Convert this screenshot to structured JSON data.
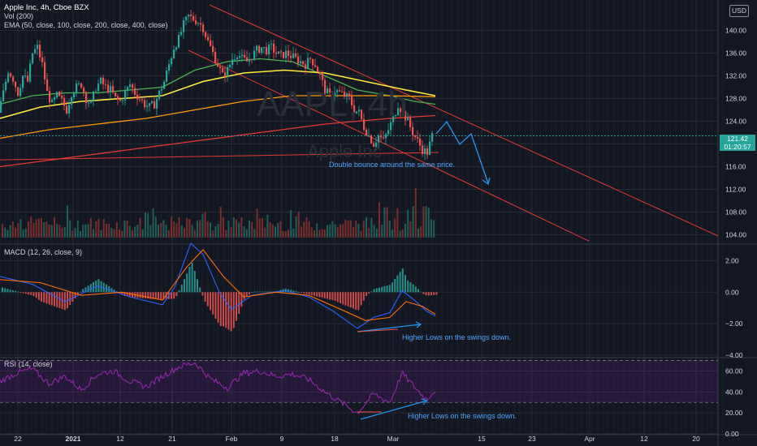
{
  "header": {
    "symbol_title": "Apple Inc, 4h, Cboe BZX",
    "vol_indicator": "Vol (200)",
    "ema_indicator": "EMA (50, close, 100, close, 200, close, 400, close)",
    "currency_button": "USD",
    "watermark_ticker": "AAPL, 4h",
    "watermark_name": "Apple Inc"
  },
  "price_tag": {
    "price": "121.42",
    "countdown": "01:20:57"
  },
  "macd_panel": {
    "title": "MACD (12, 26, close, 9)"
  },
  "rsi_panel": {
    "title": "RSI (14, close)"
  },
  "annotations": {
    "price_note": "Double bounce around the same price.",
    "macd_note": "Higher Lows on the swings down.",
    "rsi_note": "Higher Lows on the swings down."
  },
  "colors": {
    "background": "#131722",
    "up": "#26a69a",
    "down": "#ef5350",
    "ema50": "#4caf50",
    "ema100": "#ffeb3b",
    "ema200": "#ff9800",
    "ema400": "#e53935",
    "macd": "#2962ff",
    "signal": "#ff6d00",
    "rsi": "#9c27b0",
    "annotation": "#2196f3",
    "channel": "#e53935"
  },
  "chart_data": [
    {
      "type": "candlestick",
      "title": "Apple Inc, 4h, Cboe BZX",
      "y_ticks": [
        104,
        108,
        112,
        116,
        120,
        124,
        128,
        132,
        136,
        140
      ],
      "x_tick_labels": [
        "22",
        "2021",
        "12",
        "21",
        "Feb",
        "9",
        "18",
        "Mar",
        "15",
        "23",
        "Apr",
        "12",
        "20"
      ],
      "ylim": [
        102.5,
        144.5
      ],
      "last_price": 121.42,
      "close_path": [
        [
          0,
          125.5
        ],
        [
          6,
          129
        ],
        [
          12,
          133
        ],
        [
          18,
          131.5
        ],
        [
          24,
          129
        ],
        [
          30,
          132
        ],
        [
          36,
          131
        ],
        [
          42,
          136
        ],
        [
          48,
          137
        ],
        [
          54,
          134
        ],
        [
          60,
          129
        ],
        [
          66,
          127
        ],
        [
          72,
          128.5
        ],
        [
          78,
          127.5
        ],
        [
          84,
          126
        ],
        [
          90,
          129
        ],
        [
          96,
          130
        ],
        [
          102,
          130.5
        ],
        [
          108,
          128
        ],
        [
          114,
          127
        ],
        [
          120,
          130
        ],
        [
          126,
          131
        ],
        [
          132,
          130
        ],
        [
          138,
          129.5
        ],
        [
          144,
          128
        ],
        [
          150,
          127.5
        ],
        [
          156,
          129
        ],
        [
          162,
          130.5
        ],
        [
          168,
          129
        ],
        [
          174,
          128
        ],
        [
          180,
          127
        ],
        [
          186,
          126.5
        ],
        [
          192,
          127
        ],
        [
          198,
          129
        ],
        [
          204,
          131
        ],
        [
          210,
          134
        ],
        [
          216,
          137
        ],
        [
          222,
          138.5
        ],
        [
          228,
          141
        ],
        [
          234,
          142.5
        ],
        [
          240,
          142
        ],
        [
          246,
          141.5
        ],
        [
          252,
          140.5
        ],
        [
          258,
          138
        ],
        [
          264,
          136
        ],
        [
          270,
          134
        ],
        [
          276,
          132
        ],
        [
          282,
          133
        ],
        [
          288,
          135
        ],
        [
          294,
          136
        ],
        [
          300,
          135
        ],
        [
          306,
          134.5
        ],
        [
          312,
          135.5
        ],
        [
          318,
          136.5
        ],
        [
          324,
          137
        ],
        [
          330,
          136.5
        ],
        [
          336,
          137
        ],
        [
          342,
          136
        ],
        [
          348,
          135.5
        ],
        [
          354,
          136
        ],
        [
          360,
          135.5
        ],
        [
          366,
          135
        ],
        [
          372,
          134.5
        ],
        [
          378,
          134
        ],
        [
          384,
          135
        ],
        [
          390,
          134
        ],
        [
          396,
          132
        ],
        [
          402,
          129.5
        ],
        [
          408,
          128.5
        ],
        [
          414,
          129.5
        ],
        [
          420,
          129
        ],
        [
          426,
          128.5
        ],
        [
          432,
          128
        ],
        [
          438,
          126
        ],
        [
          444,
          125.5
        ],
        [
          450,
          123
        ],
        [
          456,
          121.5
        ],
        [
          462,
          120
        ],
        [
          468,
          121.5
        ],
        [
          474,
          120.5
        ],
        [
          480,
          122.5
        ],
        [
          486,
          124.5
        ],
        [
          492,
          127
        ],
        [
          498,
          125.5
        ],
        [
          504,
          124
        ],
        [
          510,
          122
        ],
        [
          516,
          120.5
        ],
        [
          522,
          119
        ],
        [
          528,
          118.5
        ],
        [
          534,
          121.42
        ]
      ],
      "ema_series": [
        {
          "name": "EMA 50",
          "points": [
            [
              0,
              127
            ],
            [
              40,
              128.5
            ],
            [
              80,
              129
            ],
            [
              120,
              129
            ],
            [
              160,
              129.5
            ],
            [
              200,
              130
            ],
            [
              240,
              133
            ],
            [
              280,
              134.5
            ],
            [
              320,
              135
            ],
            [
              360,
              134.5
            ],
            [
              400,
              132
            ],
            [
              440,
              129.5
            ],
            [
              480,
              128.5
            ],
            [
              510,
              127.5
            ],
            [
              536,
              127
            ]
          ]
        },
        {
          "name": "EMA 100",
          "points": [
            [
              0,
              124.5
            ],
            [
              50,
              126.5
            ],
            [
              100,
              127.5
            ],
            [
              150,
              128
            ],
            [
              200,
              128.5
            ],
            [
              250,
              131
            ],
            [
              300,
              132.5
            ],
            [
              350,
              133
            ],
            [
              400,
              132.5
            ],
            [
              450,
              131
            ],
            [
              500,
              129.5
            ],
            [
              536,
              128.5
            ]
          ]
        },
        {
          "name": "EMA 200",
          "points": [
            [
              0,
              121
            ],
            [
              60,
              122.5
            ],
            [
              120,
              123.5
            ],
            [
              180,
              124.5
            ],
            [
              240,
              126
            ],
            [
              300,
              127.5
            ],
            [
              360,
              128.5
            ],
            [
              420,
              128.5
            ],
            [
              480,
              128.5
            ],
            [
              536,
              128.3
            ]
          ]
        },
        {
          "name": "EMA 400",
          "points": [
            [
              0,
              116
            ],
            [
              80,
              117.5
            ],
            [
              160,
              119
            ],
            [
              240,
              120.5
            ],
            [
              320,
              122
            ],
            [
              400,
              123.5
            ],
            [
              480,
              124.5
            ],
            [
              536,
              125
            ]
          ]
        }
      ],
      "volume": {
        "max_bar_fraction": 1.0,
        "pattern": "spiky, larger spikes near late Jan and early Mar"
      }
    },
    {
      "type": "line",
      "title": "MACD (12, 26, close, 9)",
      "y_ticks": [
        -4.0,
        -2.0,
        0.0,
        2.0
      ],
      "ylim": [
        -4.1,
        3.0
      ],
      "series": [
        {
          "name": "MACD",
          "points": [
            [
              0,
              1.0
            ],
            [
              40,
              0.5
            ],
            [
              80,
              -0.6
            ],
            [
              120,
              0.4
            ],
            [
              160,
              -0.3
            ],
            [
              200,
              -0.8
            ],
            [
              215,
              0.3
            ],
            [
              235,
              3.1
            ],
            [
              250,
              2.4
            ],
            [
              270,
              0.0
            ],
            [
              285,
              -1.1
            ],
            [
              310,
              -0.2
            ],
            [
              350,
              0.1
            ],
            [
              380,
              -0.3
            ],
            [
              410,
              -1.2
            ],
            [
              440,
              -2.3
            ],
            [
              460,
              -1.6
            ],
            [
              480,
              -1.3
            ],
            [
              495,
              0.1
            ],
            [
              510,
              -0.5
            ],
            [
              525,
              -1.2
            ],
            [
              536,
              -1.5
            ]
          ]
        },
        {
          "name": "Signal",
          "points": [
            [
              0,
              0.8
            ],
            [
              50,
              0.6
            ],
            [
              100,
              -0.2
            ],
            [
              150,
              0.0
            ],
            [
              200,
              -0.5
            ],
            [
              230,
              1.6
            ],
            [
              250,
              2.7
            ],
            [
              275,
              1.0
            ],
            [
              300,
              -0.3
            ],
            [
              340,
              0.0
            ],
            [
              380,
              -0.2
            ],
            [
              420,
              -1.1
            ],
            [
              450,
              -1.8
            ],
            [
              480,
              -1.6
            ],
            [
              500,
              -0.6
            ],
            [
              520,
              -0.9
            ],
            [
              536,
              -1.4
            ]
          ]
        }
      ]
    },
    {
      "type": "line",
      "title": "RSI (14, close)",
      "y_ticks": [
        0,
        20,
        40,
        60
      ],
      "ylim": [
        0,
        72
      ],
      "bands": [
        70,
        30
      ],
      "series": [
        {
          "name": "RSI",
          "points": [
            [
              0,
              50
            ],
            [
              20,
              58
            ],
            [
              40,
              62
            ],
            [
              60,
              48
            ],
            [
              80,
              55
            ],
            [
              100,
              42
            ],
            [
              120,
              57
            ],
            [
              140,
              60
            ],
            [
              160,
              50
            ],
            [
              180,
              45
            ],
            [
              200,
              55
            ],
            [
              220,
              64
            ],
            [
              240,
              68
            ],
            [
              260,
              52
            ],
            [
              280,
              44
            ],
            [
              300,
              58
            ],
            [
              320,
              60
            ],
            [
              340,
              55
            ],
            [
              360,
              57
            ],
            [
              380,
              52
            ],
            [
              400,
              40
            ],
            [
              420,
              30
            ],
            [
              440,
              20
            ],
            [
              460,
              38
            ],
            [
              480,
              30
            ],
            [
              495,
              58
            ],
            [
              510,
              45
            ],
            [
              525,
              33
            ],
            [
              536,
              42
            ]
          ]
        }
      ]
    }
  ]
}
